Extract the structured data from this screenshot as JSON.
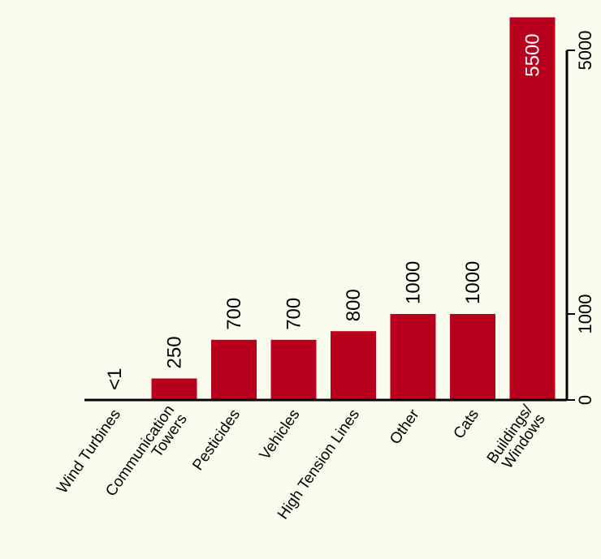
{
  "chart_data": {
    "type": "bar",
    "orientation": "vertical",
    "title": "",
    "xlabel": "",
    "ylabel": "",
    "categories": [
      [
        "Wind Turbines"
      ],
      [
        "Communication",
        "Towers"
      ],
      [
        "Pesticides"
      ],
      [
        "Vehicles"
      ],
      [
        "High Tension Lines"
      ],
      [
        "Other"
      ],
      [
        "Cats"
      ],
      [
        "Buildings/",
        "Windows"
      ]
    ],
    "values": [
      1,
      250,
      700,
      700,
      800,
      1000,
      1000,
      5500
    ],
    "value_labels": [
      "<1",
      "250",
      "700",
      "700",
      "800",
      "1000",
      "1000",
      "5500"
    ],
    "y_scale": "broken (0–1000 linear, compressed above 1000)",
    "ylim": [
      0,
      5500
    ],
    "yticks": [
      0,
      1000,
      5000
    ],
    "ytick_labels": [
      "0",
      "1000",
      "5000"
    ],
    "y_axis_side": "right",
    "bar_color": "#b8001e",
    "background_color": "#fcfcee",
    "grid": false,
    "legend": "none"
  }
}
